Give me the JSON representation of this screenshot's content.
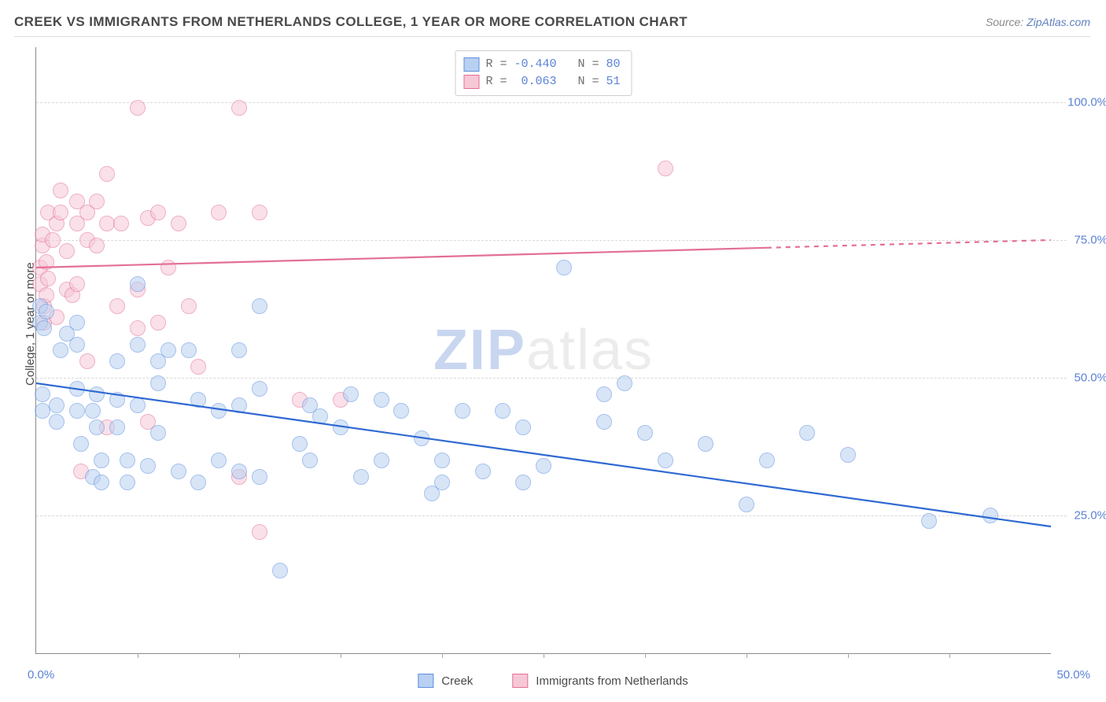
{
  "header": {
    "title": "CREEK VS IMMIGRANTS FROM NETHERLANDS COLLEGE, 1 YEAR OR MORE CORRELATION CHART",
    "source_label": "Source:",
    "source_name": "ZipAtlas.com"
  },
  "watermark": {
    "part1": "ZIP",
    "part2": "atlas"
  },
  "chart": {
    "type": "scatter",
    "background_color": "#ffffff",
    "grid_color": "#d8d8d8",
    "axis_color": "#8a8a8a",
    "yaxis_title": "College, 1 year or more",
    "yaxis_title_color": "#4a4a4a",
    "label_color": "#5b82d8",
    "xlim": [
      0,
      50
    ],
    "ylim": [
      0,
      110
    ],
    "y_gridlines": [
      25,
      50,
      75,
      100
    ],
    "y_labels": [
      "25.0%",
      "50.0%",
      "75.0%",
      "100.0%"
    ],
    "x_ticks": [
      5,
      10,
      15,
      20,
      25,
      30,
      35,
      40,
      45
    ],
    "x_label_min": "0.0%",
    "x_label_max": "50.0%",
    "marker_radius": 9,
    "marker_border_width": 1.4,
    "line_width": 2.2
  },
  "series": {
    "a": {
      "name": "Creek",
      "R": "-0.440",
      "N": "80",
      "fill": "#b8d0f2",
      "stroke": "#5f8fdc",
      "fill_opacity": 0.55,
      "trend": {
        "y_at_x0": 49,
        "y_at_x50": 23,
        "dash_from_x": 50,
        "color": "#2f69d2"
      },
      "points": [
        [
          0.2,
          63
        ],
        [
          0.2,
          60
        ],
        [
          0.4,
          59
        ],
        [
          0.5,
          62
        ],
        [
          0.3,
          47
        ],
        [
          0.3,
          44
        ],
        [
          1.0,
          42
        ],
        [
          1.0,
          45
        ],
        [
          1.2,
          55
        ],
        [
          1.5,
          58
        ],
        [
          2.0,
          60
        ],
        [
          2.0,
          56
        ],
        [
          2.0,
          48
        ],
        [
          2.0,
          44
        ],
        [
          2.2,
          38
        ],
        [
          2.8,
          44
        ],
        [
          2.8,
          32
        ],
        [
          3.0,
          47
        ],
        [
          3.0,
          41
        ],
        [
          3.2,
          35
        ],
        [
          3.2,
          31
        ],
        [
          4.0,
          53
        ],
        [
          4.0,
          46
        ],
        [
          4.0,
          41
        ],
        [
          4.5,
          35
        ],
        [
          4.5,
          31
        ],
        [
          5.0,
          67
        ],
        [
          5.0,
          56
        ],
        [
          5.0,
          45
        ],
        [
          5.5,
          34
        ],
        [
          6.0,
          49
        ],
        [
          6.0,
          53
        ],
        [
          6.0,
          40
        ],
        [
          6.5,
          55
        ],
        [
          7.0,
          33
        ],
        [
          7.5,
          55
        ],
        [
          8.0,
          46
        ],
        [
          8.0,
          31
        ],
        [
          9.0,
          44
        ],
        [
          9.0,
          35
        ],
        [
          10.0,
          55
        ],
        [
          10.0,
          45
        ],
        [
          10.0,
          33
        ],
        [
          11.0,
          63
        ],
        [
          11.0,
          48
        ],
        [
          11.0,
          32
        ],
        [
          12.0,
          15
        ],
        [
          13.0,
          38
        ],
        [
          13.5,
          45
        ],
        [
          13.5,
          35
        ],
        [
          14.0,
          43
        ],
        [
          15.0,
          41
        ],
        [
          15.5,
          47
        ],
        [
          16.0,
          32
        ],
        [
          17.0,
          46
        ],
        [
          17.0,
          35
        ],
        [
          18.0,
          44
        ],
        [
          19.0,
          39
        ],
        [
          19.5,
          29
        ],
        [
          20.0,
          31
        ],
        [
          20.0,
          35
        ],
        [
          21.0,
          44
        ],
        [
          22.0,
          33
        ],
        [
          23.0,
          44
        ],
        [
          24.0,
          41
        ],
        [
          24.0,
          31
        ],
        [
          25.0,
          34
        ],
        [
          26.0,
          70
        ],
        [
          28.0,
          47
        ],
        [
          28.0,
          42
        ],
        [
          29.0,
          49
        ],
        [
          30.0,
          40
        ],
        [
          31.0,
          35
        ],
        [
          33.0,
          38
        ],
        [
          35.0,
          27
        ],
        [
          36.0,
          35
        ],
        [
          38.0,
          40
        ],
        [
          40.0,
          36
        ],
        [
          44.0,
          24
        ],
        [
          47.0,
          25
        ]
      ]
    },
    "b": {
      "name": "Immigrants from Netherlands",
      "R": " 0.063",
      "N": "51",
      "fill": "#f6c8d6",
      "stroke": "#e36f97",
      "fill_opacity": 0.55,
      "trend": {
        "y_at_x0": 70,
        "y_at_x50": 75,
        "dash_from_x": 36,
        "color": "#e36f97"
      },
      "points": [
        [
          0.2,
          70
        ],
        [
          0.2,
          67
        ],
        [
          0.3,
          74
        ],
        [
          0.3,
          76
        ],
        [
          0.4,
          60
        ],
        [
          0.4,
          63
        ],
        [
          0.5,
          65
        ],
        [
          0.5,
          71
        ],
        [
          0.6,
          68
        ],
        [
          0.6,
          80
        ],
        [
          0.8,
          75
        ],
        [
          1.0,
          78
        ],
        [
          1.0,
          61
        ],
        [
          1.2,
          84
        ],
        [
          1.2,
          80
        ],
        [
          1.5,
          66
        ],
        [
          1.5,
          73
        ],
        [
          1.8,
          65
        ],
        [
          2.0,
          82
        ],
        [
          2.0,
          78
        ],
        [
          2.0,
          67
        ],
        [
          2.2,
          33
        ],
        [
          2.5,
          80
        ],
        [
          2.5,
          75
        ],
        [
          2.5,
          53
        ],
        [
          3.0,
          82
        ],
        [
          3.0,
          74
        ],
        [
          3.5,
          87
        ],
        [
          3.5,
          78
        ],
        [
          3.5,
          41
        ],
        [
          4.0,
          63
        ],
        [
          4.2,
          78
        ],
        [
          5.0,
          99
        ],
        [
          5.0,
          66
        ],
        [
          5.0,
          59
        ],
        [
          5.5,
          79
        ],
        [
          5.5,
          42
        ],
        [
          6.0,
          80
        ],
        [
          6.0,
          60
        ],
        [
          6.5,
          70
        ],
        [
          7.0,
          78
        ],
        [
          7.5,
          63
        ],
        [
          8.0,
          52
        ],
        [
          9.0,
          80
        ],
        [
          10.0,
          99
        ],
        [
          10.0,
          32
        ],
        [
          11.0,
          80
        ],
        [
          11.0,
          22
        ],
        [
          13.0,
          46
        ],
        [
          15.0,
          46
        ],
        [
          31.0,
          88
        ]
      ]
    }
  },
  "legend_top": {
    "R_label": "R = ",
    "N_label": "N = "
  },
  "legend_bottom": {
    "a": "Creek",
    "b": "Immigrants from Netherlands"
  }
}
